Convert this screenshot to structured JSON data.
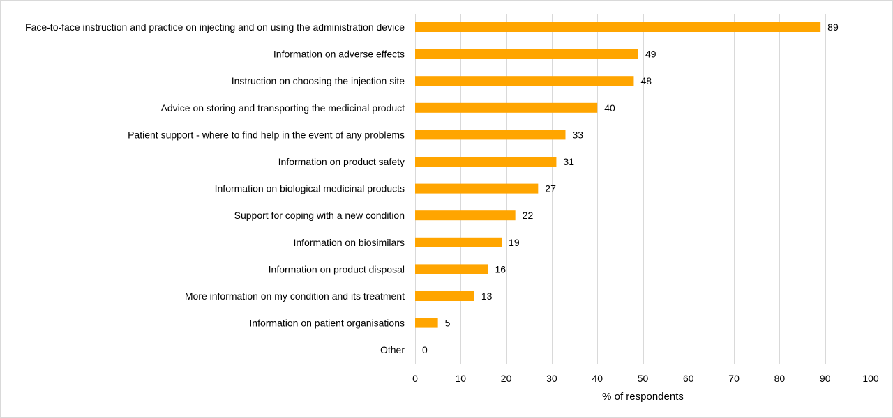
{
  "chart_data": {
    "type": "bar",
    "orientation": "horizontal",
    "categories": [
      "Face-to-face instruction and practice on injecting and on using the administration device",
      "Information on adverse effects",
      "Instruction on choosing the injection site",
      "Advice on storing and transporting the medicinal product",
      "Patient support - where to find help in the event of any problems",
      "Information on product safety",
      "Information on biological medicinal products",
      "Support for coping with a new condition",
      "Information on biosimilars",
      "Information on product disposal",
      "More information on my condition and its treatment",
      "Information on patient organisations",
      "Other"
    ],
    "values": [
      89,
      49,
      48,
      40,
      33,
      31,
      27,
      22,
      19,
      16,
      13,
      5,
      0
    ],
    "xlabel": "% of respondents",
    "ylabel": "",
    "xlim": [
      0,
      100
    ],
    "xticks": [
      0,
      10,
      20,
      30,
      40,
      50,
      60,
      70,
      80,
      90,
      100
    ],
    "grid": "vertical",
    "data_labels": true,
    "legend": "none",
    "bar_color": "#FFA500"
  }
}
